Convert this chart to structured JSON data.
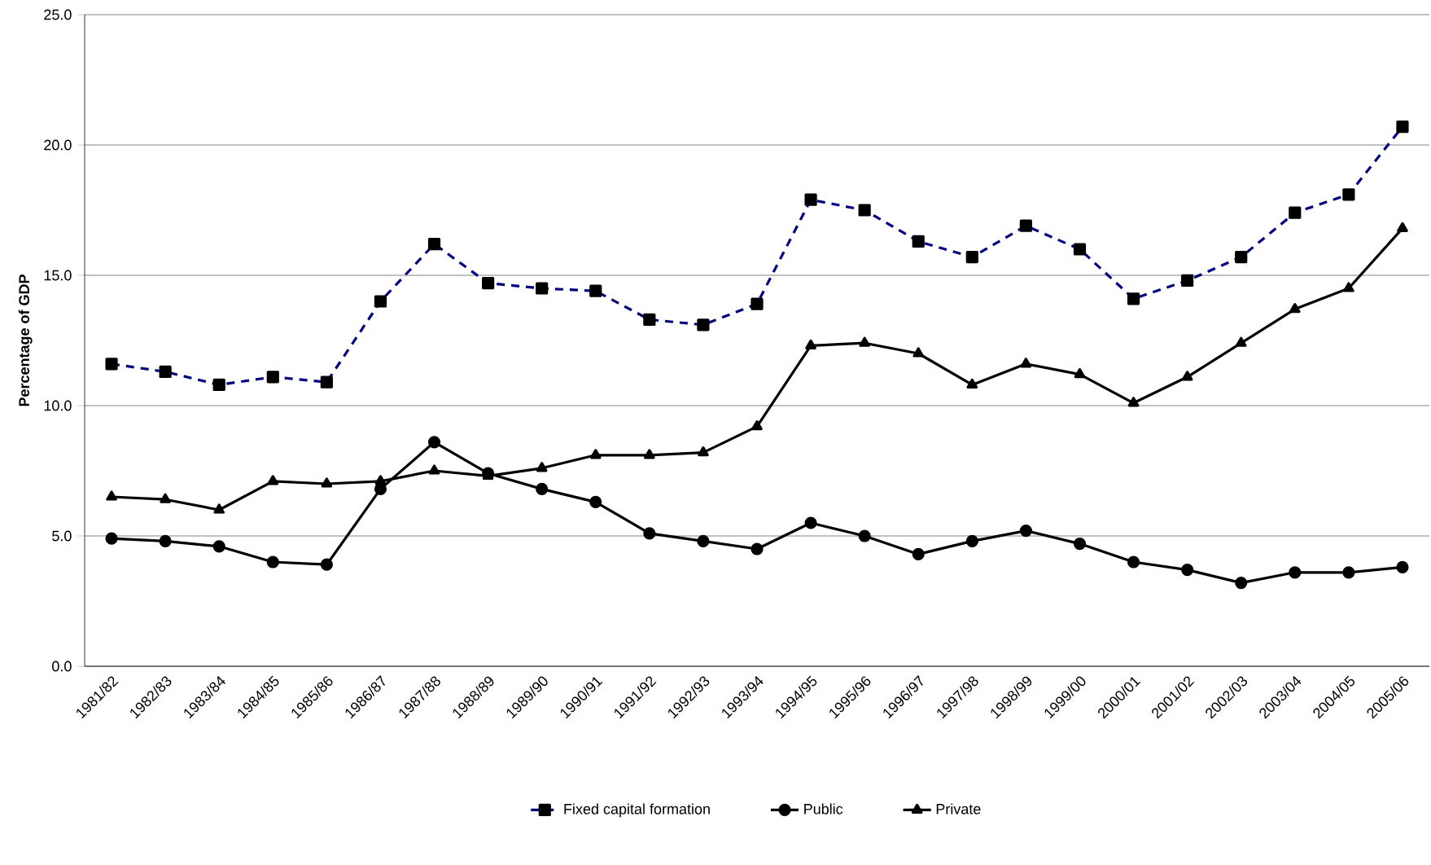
{
  "chart_data": {
    "type": "line",
    "ylabel": "Percentage of GDP",
    "categories": [
      "1981/82",
      "1982/83",
      "1983/84",
      "1984/85",
      "1985/86",
      "1986/87",
      "1987/88",
      "1988/89",
      "1989/90",
      "1990/91",
      "1991/92",
      "1992/93",
      "1993/94",
      "1994/95",
      "1995/96",
      "1996/97",
      "1997/98",
      "1998/99",
      "1999/00",
      "2000/01",
      "2001/02",
      "2002/03",
      "2003/04",
      "2004/05",
      "2005/06"
    ],
    "series": [
      {
        "name": "Fixed capital formation",
        "color": "#000080",
        "marker": "square",
        "line_style": "dashed",
        "values": [
          11.6,
          11.3,
          10.8,
          11.1,
          10.9,
          14.0,
          16.2,
          14.7,
          14.5,
          14.4,
          13.3,
          13.1,
          13.9,
          17.9,
          17.5,
          16.3,
          15.7,
          16.9,
          16.0,
          14.1,
          14.8,
          15.7,
          17.4,
          18.1,
          20.7
        ]
      },
      {
        "name": "Public",
        "color": "#000000",
        "marker": "circle",
        "line_style": "solid",
        "values": [
          4.9,
          4.8,
          4.6,
          4.0,
          3.9,
          6.8,
          8.6,
          7.4,
          6.8,
          6.3,
          5.1,
          4.8,
          4.5,
          5.5,
          5.0,
          4.3,
          4.8,
          5.2,
          4.7,
          4.0,
          3.7,
          3.2,
          3.6,
          3.6,
          3.8
        ]
      },
      {
        "name": "Private",
        "color": "#000000",
        "marker": "triangle",
        "line_style": "solid",
        "values": [
          6.5,
          6.4,
          6.0,
          7.1,
          7.0,
          7.1,
          7.5,
          7.3,
          7.6,
          8.1,
          8.1,
          8.2,
          9.2,
          12.3,
          12.4,
          12.0,
          10.8,
          11.6,
          11.2,
          10.1,
          11.1,
          12.4,
          13.7,
          14.5,
          16.8
        ]
      }
    ],
    "ylim": [
      0,
      25
    ],
    "yticks": [
      {
        "value": 0,
        "label": "0.0"
      },
      {
        "value": 5,
        "label": "5.0"
      },
      {
        "value": 10,
        "label": "10.0"
      },
      {
        "value": 15,
        "label": "15.0"
      },
      {
        "value": 20,
        "label": "20.0"
      },
      {
        "value": 25,
        "label": "25.0"
      }
    ],
    "grid": "y",
    "legend": "bottom"
  }
}
